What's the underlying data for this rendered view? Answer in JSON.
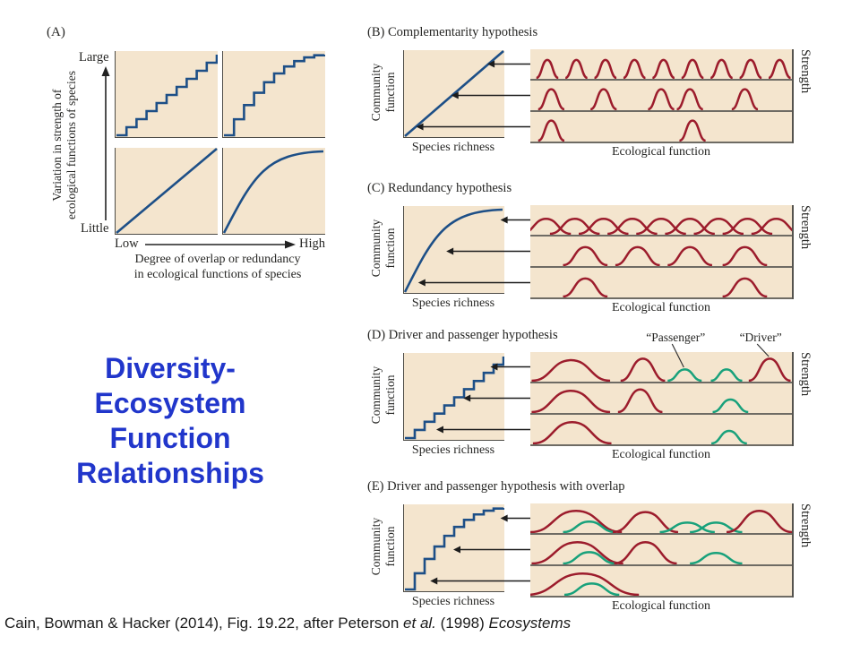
{
  "slide": {
    "title_lines": [
      "Diversity-",
      "Ecosystem",
      "Function",
      "Relationships"
    ],
    "citation": {
      "text1": "Cain, Bowman & Hacker (2014), Fig. 19.22, after Peterson ",
      "italic1": "et al.",
      "text2": " (1998) ",
      "italic2": "Ecosystems"
    }
  },
  "colors": {
    "maroon": "#9c1c2c",
    "teal": "#18a17b",
    "line_blue": "#1d4f87",
    "panel_beige": "#f4e5ce",
    "title_blue": "#2136cb",
    "axis_dark": "#4e4c47",
    "baseline_gray": "#6e6b64"
  },
  "figure": {
    "panel_a": {
      "label": "(A)",
      "ylabel_lines": [
        "Variation in strength of",
        "ecological functions of species"
      ],
      "y_top": "Large",
      "y_bottom": "Little",
      "x_left": "Low",
      "x_right": "High",
      "xlabel_lines": [
        "Degree of overlap or redundancy",
        "in ecological functions of species"
      ],
      "plots": [
        {
          "curve": "stair-linear"
        },
        {
          "curve": "stair-saturating"
        },
        {
          "curve": "linear"
        },
        {
          "curve": "saturating"
        }
      ]
    },
    "hypotheses": [
      {
        "id": "B",
        "title": "(B) Complementarity hypothesis",
        "ylabel_lines": [
          "Community",
          "function"
        ],
        "xlabel": "Species richness",
        "strip_xlabel": "Ecological function",
        "strength_label": "Strength",
        "curve": "linear",
        "arrow_ends": [
          0.84,
          0.48,
          0.13
        ],
        "rows": [
          {
            "bells": [
              [
                0.065,
                0.042,
                0.72,
                "m"
              ],
              [
                0.176,
                0.042,
                0.72,
                "m"
              ],
              [
                0.287,
                0.042,
                0.72,
                "m"
              ],
              [
                0.398,
                0.042,
                0.72,
                "m"
              ],
              [
                0.509,
                0.042,
                0.72,
                "m"
              ],
              [
                0.62,
                0.042,
                0.72,
                "m"
              ],
              [
                0.731,
                0.042,
                0.72,
                "m"
              ],
              [
                0.842,
                0.042,
                0.72,
                "m"
              ],
              [
                0.953,
                0.042,
                0.72,
                "m"
              ]
            ]
          },
          {
            "bells": [
              [
                0.08,
                0.05,
                0.8,
                "m"
              ],
              [
                0.28,
                0.05,
                0.8,
                "m"
              ],
              [
                0.5,
                0.05,
                0.8,
                "m"
              ],
              [
                0.61,
                0.05,
                0.8,
                "m"
              ],
              [
                0.82,
                0.05,
                0.8,
                "m"
              ]
            ]
          },
          {
            "bells": [
              [
                0.08,
                0.05,
                0.8,
                "m"
              ],
              [
                0.62,
                0.05,
                0.8,
                "m"
              ]
            ]
          }
        ]
      },
      {
        "id": "C",
        "title": "(C) Redundancy hypothesis",
        "ylabel_lines": [
          "Community",
          "function"
        ],
        "xlabel": "Species richness",
        "strip_xlabel": "Ecological function",
        "strength_label": "Strength",
        "curve": "saturating",
        "arrow_ends": [
          0.97,
          0.43,
          0.15
        ],
        "rows": [
          {
            "bells": [
              [
                0.06,
                0.095,
                0.6,
                "m"
              ],
              [
                0.17,
                0.095,
                0.6,
                "m"
              ],
              [
                0.28,
                0.095,
                0.6,
                "m"
              ],
              [
                0.39,
                0.095,
                0.6,
                "m"
              ],
              [
                0.5,
                0.095,
                0.6,
                "m"
              ],
              [
                0.61,
                0.095,
                0.6,
                "m"
              ],
              [
                0.72,
                0.095,
                0.6,
                "m"
              ],
              [
                0.83,
                0.095,
                0.6,
                "m"
              ],
              [
                0.94,
                0.095,
                0.6,
                "m"
              ]
            ]
          },
          {
            "bells": [
              [
                0.21,
                0.085,
                0.72,
                "m"
              ],
              [
                0.41,
                0.085,
                0.72,
                "m"
              ],
              [
                0.61,
                0.085,
                0.72,
                "m"
              ],
              [
                0.82,
                0.085,
                0.72,
                "m"
              ]
            ]
          },
          {
            "bells": [
              [
                0.21,
                0.085,
                0.72,
                "m"
              ],
              [
                0.82,
                0.085,
                0.72,
                "m"
              ]
            ]
          }
        ]
      },
      {
        "id": "D",
        "title": "(D) Driver and passenger hypothesis",
        "ylabel_lines": [
          "Community",
          "function"
        ],
        "xlabel": "Species richness",
        "strip_xlabel": "Ecological function",
        "strength_label": "Strength",
        "curve": "stair-linear",
        "arrow_ends": [
          0.87,
          0.6,
          0.33
        ],
        "annotations": [
          {
            "text": "“Passenger”",
            "target_x": 0.59
          },
          {
            "text": "“Driver”",
            "target_x": 0.915
          }
        ],
        "rows": [
          {
            "bells": [
              [
                0.155,
                0.15,
                0.82,
                "m"
              ],
              [
                0.43,
                0.085,
                0.88,
                "m"
              ],
              [
                0.59,
                0.065,
                0.45,
                "t"
              ],
              [
                0.75,
                0.06,
                0.45,
                "t"
              ],
              [
                0.915,
                0.08,
                0.88,
                "m"
              ]
            ]
          },
          {
            "bells": [
              [
                0.155,
                0.15,
                0.85,
                "m"
              ],
              [
                0.42,
                0.085,
                0.9,
                "m"
              ],
              [
                0.765,
                0.068,
                0.5,
                "t"
              ]
            ]
          },
          {
            "bells": [
              [
                0.16,
                0.15,
                0.85,
                "m"
              ],
              [
                0.76,
                0.068,
                0.5,
                "t"
              ]
            ]
          }
        ]
      },
      {
        "id": "E",
        "title": "(E) Driver and passenger hypothesis with overlap",
        "ylabel_lines": [
          "Community",
          "function"
        ],
        "xlabel": "Species richness",
        "strip_xlabel": "Ecological function",
        "strength_label": "Strength",
        "curve": "stair-saturating",
        "arrow_ends": [
          0.97,
          0.5,
          0.27
        ],
        "rows": [
          {
            "bells": [
              [
                0.175,
                0.175,
                0.85,
                "m"
              ],
              [
                0.225,
                0.1,
                0.42,
                "t"
              ],
              [
                0.44,
                0.125,
                0.8,
                "m"
              ],
              [
                0.6,
                0.105,
                0.38,
                "t"
              ],
              [
                0.71,
                0.1,
                0.38,
                "t"
              ],
              [
                0.875,
                0.125,
                0.85,
                "m"
              ]
            ]
          },
          {
            "bells": [
              [
                0.18,
                0.175,
                0.85,
                "m"
              ],
              [
                0.225,
                0.1,
                0.45,
                "t"
              ],
              [
                0.44,
                0.12,
                0.85,
                "m"
              ],
              [
                0.71,
                0.1,
                0.42,
                "t"
              ]
            ]
          },
          {
            "bells": [
              [
                0.2,
                0.215,
                0.85,
                "m"
              ],
              [
                0.235,
                0.105,
                0.45,
                "t"
              ]
            ]
          }
        ]
      }
    ]
  }
}
